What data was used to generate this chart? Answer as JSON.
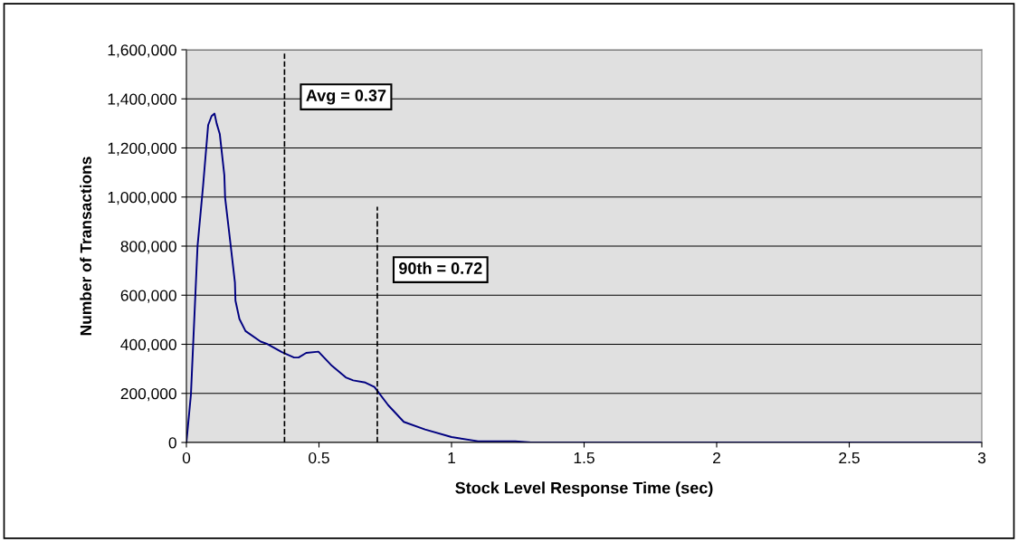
{
  "chart_data": {
    "type": "line",
    "xlabel": "Stock Level Response Time (sec)",
    "ylabel": "Number of Transactions",
    "x": [
      0,
      0.017,
      0.042,
      0.063,
      0.082,
      0.095,
      0.106,
      0.114,
      0.126,
      0.143,
      0.146,
      0.166,
      0.183,
      0.185,
      0.2,
      0.223,
      0.28,
      0.303,
      0.36,
      0.406,
      0.423,
      0.452,
      0.498,
      0.549,
      0.601,
      0.629,
      0.675,
      0.709,
      0.761,
      0.82,
      0.9,
      1.0,
      1.1,
      1.24,
      1.3,
      2.0,
      3.0
    ],
    "series": [
      {
        "color": "#000080",
        "values": [
          0,
          195000,
          800000,
          1047000,
          1293000,
          1330000,
          1340000,
          1300000,
          1256000,
          1090000,
          997000,
          812000,
          652000,
          578000,
          503000,
          454000,
          411000,
          402000,
          368000,
          346000,
          346000,
          365000,
          370000,
          312000,
          265000,
          253000,
          244000,
          226000,
          152000,
          84000,
          53000,
          22000,
          5000,
          5000,
          0,
          0,
          0
        ]
      }
    ],
    "xlim": [
      0,
      3
    ],
    "xticks": [
      0,
      0.5,
      1,
      1.5,
      2,
      2.5,
      3
    ],
    "ylim": [
      0,
      1600000
    ],
    "yticks": [
      {
        "value": 0,
        "label": "0"
      },
      {
        "value": 200000,
        "label": "200,000"
      },
      {
        "value": 400000,
        "label": "400,000"
      },
      {
        "value": 600000,
        "label": "600,000"
      },
      {
        "value": 800000,
        "label": "800,000"
      },
      {
        "value": 1000000,
        "label": "1,000,000"
      },
      {
        "value": 1200000,
        "label": "1,200,000"
      },
      {
        "value": 1400000,
        "label": "1,400,000"
      },
      {
        "value": 1600000,
        "label": "1,600,000"
      }
    ],
    "grid": "y",
    "line_style": "solid",
    "marker": "none",
    "ref_lines": [
      {
        "axis": "x",
        "value": 0.37,
        "label": "Avg = 0.37",
        "color": "#000000",
        "line_style": "dashed"
      },
      {
        "axis": "x",
        "value": 0.72,
        "label": "90th = 0.72",
        "color": "#000000",
        "line_style": "dashed"
      }
    ]
  }
}
